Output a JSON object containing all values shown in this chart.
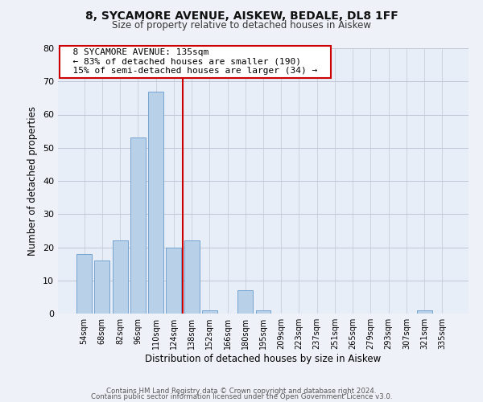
{
  "title": "8, SYCAMORE AVENUE, AISKEW, BEDALE, DL8 1FF",
  "subtitle": "Size of property relative to detached houses in Aiskew",
  "xlabel": "Distribution of detached houses by size in Aiskew",
  "ylabel": "Number of detached properties",
  "bar_labels": [
    "54sqm",
    "68sqm",
    "82sqm",
    "96sqm",
    "110sqm",
    "124sqm",
    "138sqm",
    "152sqm",
    "166sqm",
    "180sqm",
    "195sqm",
    "209sqm",
    "223sqm",
    "237sqm",
    "251sqm",
    "265sqm",
    "279sqm",
    "293sqm",
    "307sqm",
    "321sqm",
    "335sqm"
  ],
  "bar_values": [
    18,
    16,
    22,
    53,
    67,
    20,
    22,
    1,
    0,
    7,
    1,
    0,
    0,
    0,
    0,
    0,
    0,
    0,
    0,
    1,
    0
  ],
  "bar_color": "#b8d0e8",
  "bar_edge_color": "#6699cc",
  "vline_x": 5.5,
  "vline_color": "#cc0000",
  "annotation_title": "8 SYCAMORE AVENUE: 135sqm",
  "annotation_line1": "← 83% of detached houses are smaller (190)",
  "annotation_line2": "15% of semi-detached houses are larger (34) →",
  "annotation_box_color": "#ffffff",
  "annotation_box_edge_color": "#cc0000",
  "ylim": [
    0,
    80
  ],
  "yticks": [
    0,
    10,
    20,
    30,
    40,
    50,
    60,
    70,
    80
  ],
  "footnote1": "Contains HM Land Registry data © Crown copyright and database right 2024.",
  "footnote2": "Contains public sector information licensed under the Open Government Licence v3.0.",
  "background_color": "#eef2f8",
  "plot_background_color": "#e8eef8"
}
